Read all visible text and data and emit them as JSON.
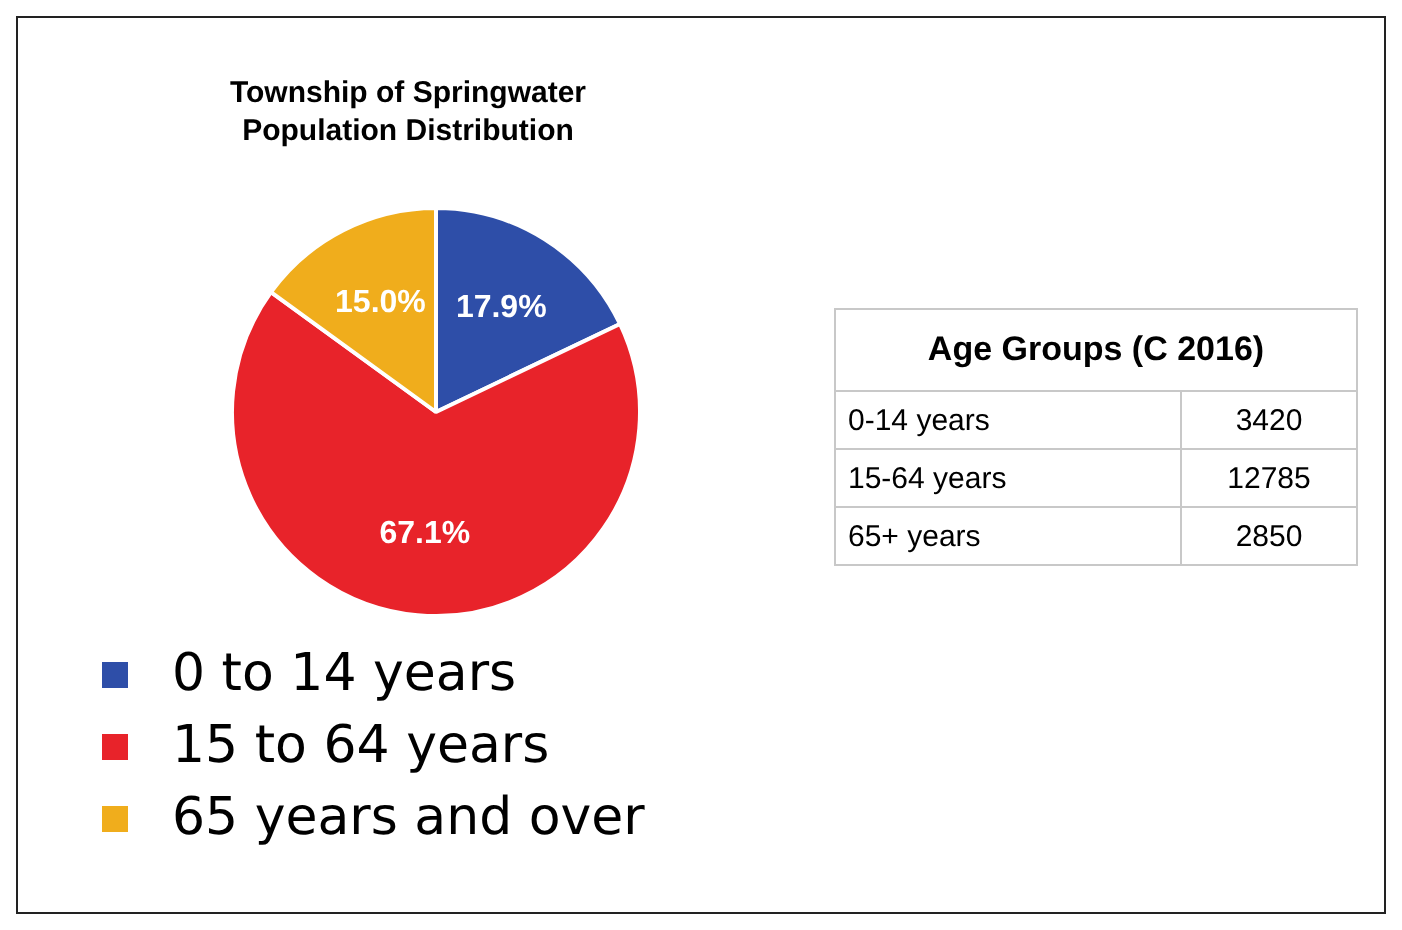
{
  "chart_data": [
    {
      "type": "pie",
      "title": "Township of Springwater Population Distribution",
      "categories": [
        "0 to 14 years",
        "15 to 64 years",
        "65 years and over"
      ],
      "values": [
        17.9,
        67.1,
        15.0
      ],
      "colors": [
        "#2e4ea8",
        "#e8232a",
        "#f0ad1c"
      ],
      "value_labels": [
        "17.9%",
        "67.1%",
        "15.0%"
      ],
      "legend": "bottom"
    },
    {
      "type": "other",
      "title": "Age Groups (C 2016)",
      "categories": [
        "0-14 years",
        "15-64 years",
        "65+ years"
      ],
      "values": [
        3420,
        12785,
        2850
      ],
      "data_labels": true
    }
  ]
}
